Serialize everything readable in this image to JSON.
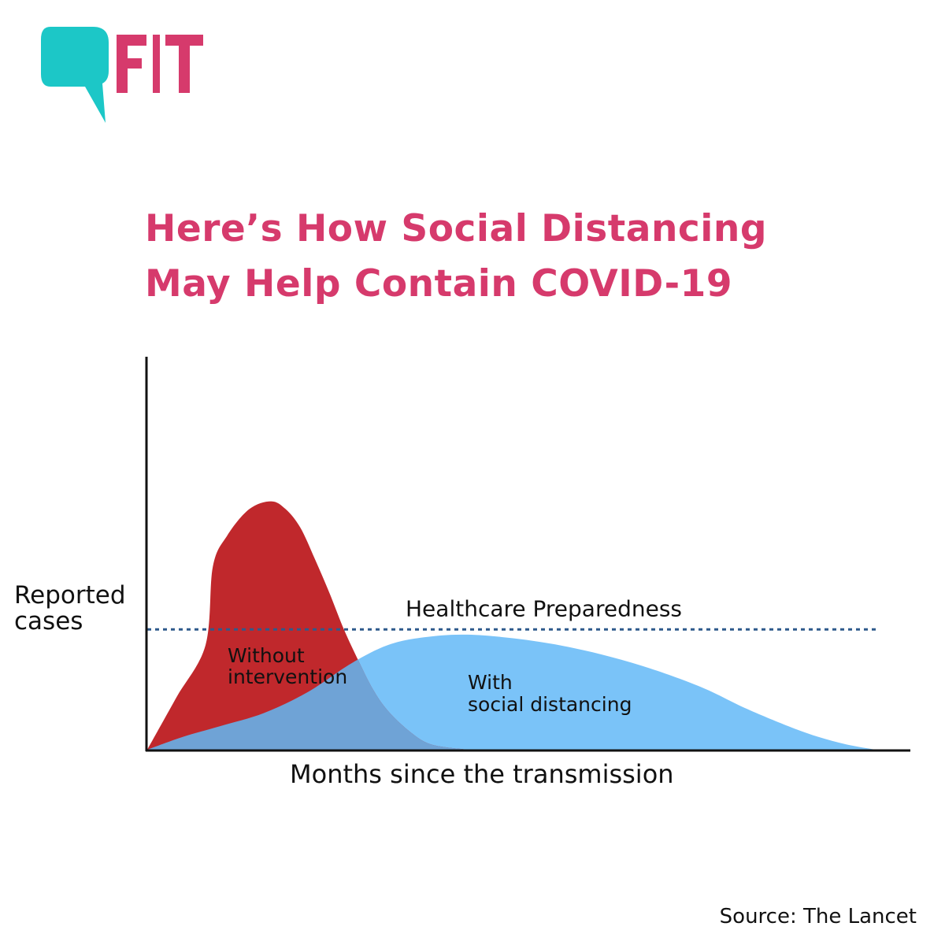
{
  "brand": {
    "logo_text": "FIT",
    "bubble_color": "#1cc7c7",
    "text_color": "#d63a6c"
  },
  "title": {
    "line1": "Here’s How Social Distancing",
    "line2": "May Help Contain COVID-19",
    "color": "#d63a6c"
  },
  "source": "Source: The Lancet",
  "chart_data": {
    "type": "area",
    "xlabel": "Months since the transmission",
    "ylabel": "Reported cases",
    "xlim": [
      0,
      100
    ],
    "ylim": [
      0,
      100
    ],
    "grid": false,
    "series": [
      {
        "name": "Without intervention",
        "color": "#c0282c",
        "x": [
          0,
          4,
          8,
          9,
          11,
          14,
          17,
          19,
          21,
          23,
          25,
          27,
          29,
          31,
          33,
          36,
          39,
          44
        ],
        "y": [
          0,
          20,
          40,
          70,
          82,
          92,
          95,
          92,
          85,
          73,
          60,
          46,
          34,
          23,
          15,
          7,
          2,
          0
        ]
      },
      {
        "name": "With social distancing",
        "color": "#7ac3f8",
        "x": [
          0,
          5,
          10,
          16,
          22,
          28,
          33,
          38,
          44,
          52,
          60,
          68,
          76,
          82,
          88,
          92,
          96,
          100
        ],
        "y": [
          0,
          5,
          9,
          14,
          22,
          33,
          40,
          43,
          44,
          42,
          38,
          32,
          24,
          16,
          9,
          5,
          2,
          0
        ]
      }
    ],
    "reference_line": {
      "label": "Healthcare Preparedness",
      "y": 46,
      "color": "#2e5a8c",
      "style": "dotted"
    },
    "series_labels": {
      "without": [
        "Without",
        "intervention"
      ],
      "with": [
        "With",
        "social distancing"
      ]
    },
    "overlap_color": "#6fa3d6"
  }
}
